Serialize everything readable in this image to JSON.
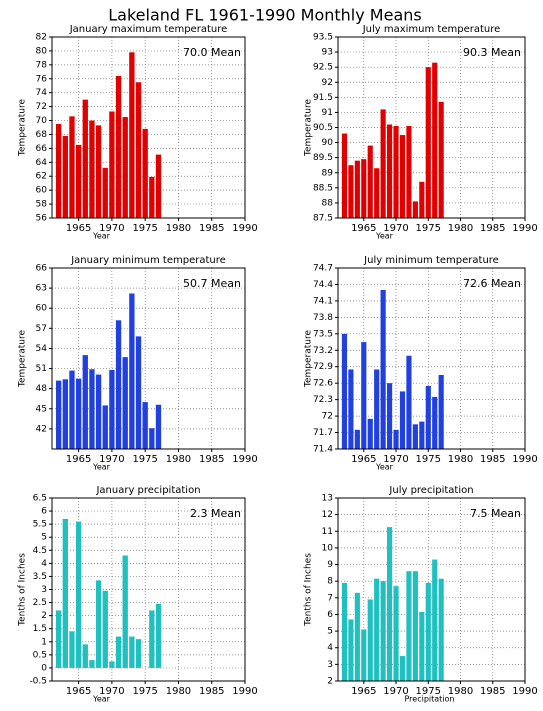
{
  "title": "Lakeland FL  1961-1990 Monthly Means",
  "chart_data": [
    {
      "type": "bar",
      "title": "January maximum temperature",
      "annotation": "70.0 Mean",
      "xlabel": "Year",
      "ylabel": "Temperature",
      "color": "#e00000",
      "grid": true,
      "x": [
        1962,
        1963,
        1964,
        1965,
        1966,
        1967,
        1968,
        1969,
        1970,
        1971,
        1972,
        1973,
        1974,
        1975,
        1976,
        1977
      ],
      "values": [
        69.5,
        67.8,
        70.6,
        66.5,
        73,
        70,
        69.3,
        63.2,
        71.3,
        76.4,
        70.5,
        79.8,
        75.5,
        68.8,
        61.9,
        65.1
      ],
      "xlim": [
        1961,
        1990
      ],
      "xticks": [
        1965,
        1970,
        1975,
        1980,
        1985,
        1990
      ],
      "ylim": [
        56,
        82
      ],
      "yticks": [
        56,
        58,
        60,
        62,
        64,
        66,
        68,
        70,
        72,
        74,
        76,
        78,
        80,
        82
      ]
    },
    {
      "type": "bar",
      "title": "July maximum temperature",
      "annotation": "90.3 Mean",
      "xlabel": "Year",
      "ylabel": "Temperature",
      "color": "#e00000",
      "grid": true,
      "x": [
        1962,
        1963,
        1964,
        1965,
        1966,
        1967,
        1968,
        1969,
        1970,
        1971,
        1972,
        1973,
        1974,
        1975,
        1976,
        1977
      ],
      "values": [
        90.3,
        89.25,
        89.4,
        89.45,
        89.9,
        89.15,
        91.1,
        90.6,
        90.55,
        90.25,
        90.55,
        88.05,
        88.7,
        92.5,
        92.65,
        91.35
      ],
      "xlim": [
        1961,
        1990
      ],
      "xticks": [
        1965,
        1970,
        1975,
        1980,
        1985,
        1990
      ],
      "ylim": [
        87.5,
        93.5
      ],
      "yticks": [
        87.5,
        88,
        88.5,
        89,
        89.5,
        90,
        90.5,
        91,
        91.5,
        92,
        92.5,
        93,
        93.5
      ]
    },
    {
      "type": "bar",
      "title": "January minimum temperature",
      "annotation": "50.7 Mean",
      "xlabel": "Year",
      "ylabel": "Temperature",
      "color": "#2040e0",
      "grid": true,
      "x": [
        1962,
        1963,
        1964,
        1965,
        1966,
        1967,
        1968,
        1969,
        1970,
        1971,
        1972,
        1973,
        1974,
        1975,
        1976,
        1977
      ],
      "values": [
        49.2,
        49.4,
        50.7,
        49.5,
        53,
        50.9,
        50.1,
        45.5,
        50.8,
        58.2,
        52.7,
        62.2,
        55.8,
        46,
        42.1,
        45.6
      ],
      "xlim": [
        1961,
        1990
      ],
      "xticks": [
        1965,
        1970,
        1975,
        1980,
        1985,
        1990
      ],
      "ylim": [
        39,
        66
      ],
      "yticks": [
        42,
        45,
        48,
        51,
        54,
        57,
        60,
        63,
        66
      ]
    },
    {
      "type": "bar",
      "title": "July minimum temperature",
      "annotation": "72.6 Mean",
      "xlabel": "Year",
      "ylabel": "Temperature",
      "color": "#2040e0",
      "grid": true,
      "x": [
        1962,
        1963,
        1964,
        1965,
        1966,
        1967,
        1968,
        1969,
        1970,
        1971,
        1972,
        1973,
        1974,
        1975,
        1976,
        1977
      ],
      "values": [
        73.5,
        72.85,
        71.75,
        73.35,
        71.95,
        72.85,
        74.3,
        72.6,
        71.75,
        72.45,
        73.1,
        71.85,
        71.9,
        72.55,
        72.35,
        72.75
      ],
      "xlim": [
        1961,
        1990
      ],
      "xticks": [
        1965,
        1970,
        1975,
        1980,
        1985,
        1990
      ],
      "ylim": [
        71.4,
        74.7
      ],
      "yticks": [
        71.4,
        71.7,
        72,
        72.3,
        72.6,
        72.9,
        73.2,
        73.5,
        73.8,
        74.1,
        74.4,
        74.7
      ]
    },
    {
      "type": "bar",
      "title": "January precipitation",
      "annotation": "2.3 Mean",
      "xlabel": "Year",
      "ylabel": "Tenths of Inches",
      "color": "#20c0c0",
      "grid": true,
      "x": [
        1962,
        1963,
        1964,
        1965,
        1966,
        1967,
        1968,
        1969,
        1970,
        1971,
        1972,
        1973,
        1974,
        1975,
        1976,
        1977
      ],
      "values": [
        2.2,
        5.7,
        1.4,
        5.6,
        0.9,
        0.3,
        3.35,
        2.95,
        0.25,
        1.2,
        4.3,
        1.2,
        1.1,
        null,
        2.2,
        2.45
      ],
      "xlim": [
        1961,
        1990
      ],
      "xticks": [
        1965,
        1970,
        1975,
        1980,
        1985,
        1990
      ],
      "ylim": [
        -0.5,
        6.5
      ],
      "yticks": [
        -0.5,
        0,
        0.5,
        1,
        1.5,
        2,
        2.5,
        3,
        3.5,
        4,
        4.5,
        5,
        5.5,
        6,
        6.5
      ]
    },
    {
      "type": "bar",
      "title": "July precipitation",
      "annotation": "7.5 Mean",
      "xlabel": "Precipitation",
      "ylabel": "Tenths of Inches",
      "color": "#20c0c0",
      "grid": true,
      "x": [
        1962,
        1963,
        1964,
        1965,
        1966,
        1967,
        1968,
        1969,
        1970,
        1971,
        1972,
        1973,
        1974,
        1975,
        1976,
        1977
      ],
      "values": [
        7.9,
        5.7,
        7.3,
        5.1,
        6.9,
        8.15,
        8,
        11.25,
        7.7,
        3.5,
        8.6,
        8.6,
        6.15,
        7.9,
        9.3,
        8.15
      ],
      "xlim": [
        1961,
        1990
      ],
      "xticks": [
        1965,
        1970,
        1975,
        1980,
        1985,
        1990
      ],
      "ylim": [
        2,
        13
      ],
      "yticks": [
        2,
        3,
        4,
        5,
        6,
        7,
        8,
        9,
        10,
        11,
        12,
        13
      ]
    }
  ]
}
